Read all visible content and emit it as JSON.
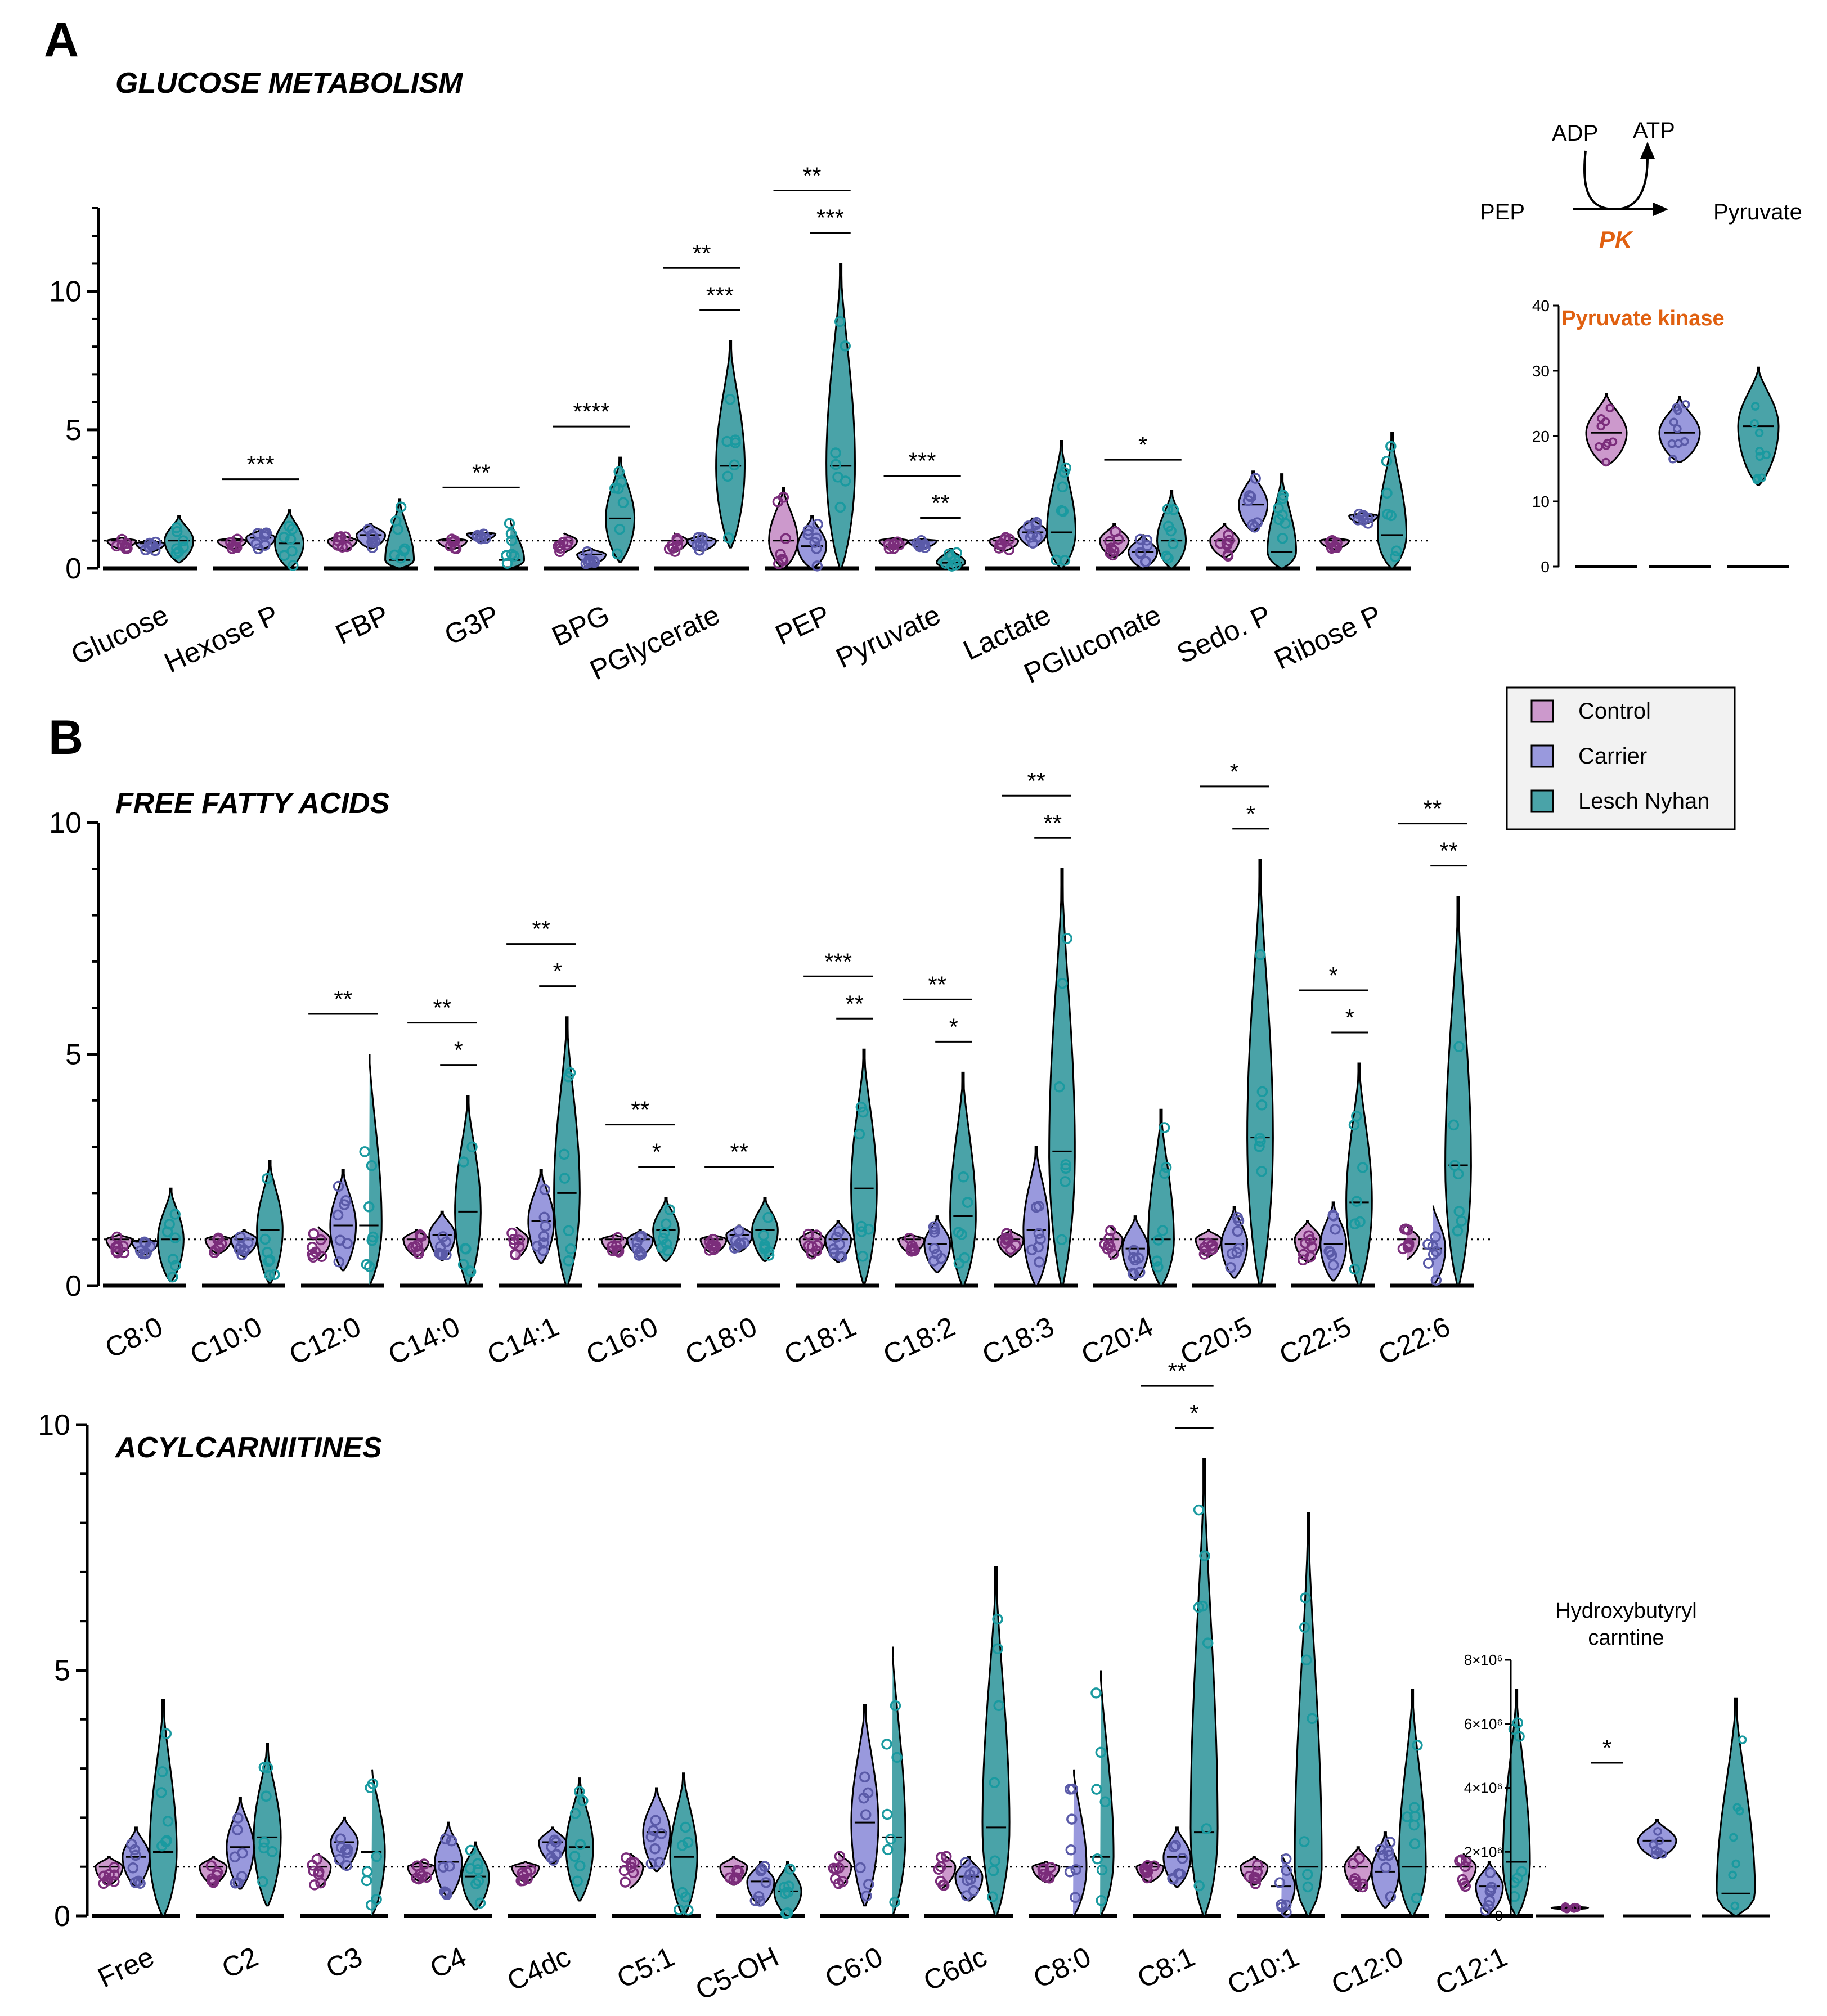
{
  "panel_letters": [
    "A",
    "B"
  ],
  "legend": {
    "items": [
      {
        "label": "Control",
        "color": "#cc99cc",
        "edge": "#6b2a6b"
      },
      {
        "label": "Carrier",
        "color": "#9999dd",
        "edge": "#444499"
      },
      {
        "label": "Lesch Nyhan",
        "color": "#4aa3a8",
        "edge": "#1a8a90"
      }
    ]
  },
  "colors": {
    "control_point": "#7b2d7b",
    "carrier_point": "#5a5aa8",
    "ln_point": "#1a9aa0",
    "annotation": "#e06010"
  },
  "pathway": {
    "substrate": "PEP",
    "product": "Pyruvate",
    "cofactor_in": "ADP",
    "cofactor_out": "ATP",
    "enzyme": "PK"
  },
  "chart_data": [
    {
      "type": "violin",
      "title": "GLUCOSE METABOLISM",
      "ylim": [
        0,
        13
      ],
      "yticks": [
        0,
        5,
        10
      ],
      "reference_line": 1,
      "categories": [
        "Glucose",
        "Hexose P",
        "FBP",
        "G3P",
        "BPG",
        "PGlycerate",
        "PEP",
        "Pyruvate",
        "Lactate",
        "PGluconate",
        "Sedo. P",
        "Ribose P"
      ],
      "series": [
        {
          "name": "Control",
          "medians": [
            1,
            1,
            1,
            1,
            1,
            1,
            1,
            1,
            1,
            1,
            1,
            1
          ],
          "maxes": [
            1.1,
            1.1,
            1.2,
            1.1,
            1.3,
            1.3,
            2.9,
            1.1,
            1.2,
            1.6,
            1.6,
            1.1
          ]
        },
        {
          "name": "Carrier",
          "medians": [
            0.9,
            1.1,
            1.2,
            1.25,
            0.5,
            1.0,
            0.8,
            1.0,
            1.3,
            0.6,
            2.3,
            1.9
          ],
          "maxes": [
            1.0,
            1.4,
            1.6,
            1.3,
            0.7,
            1.2,
            1.9,
            1.05,
            1.8,
            1.2,
            3.5,
            2.0
          ]
        },
        {
          "name": "Lesch Nyhan",
          "medians": [
            1.0,
            0.9,
            0.3,
            0.3,
            1.8,
            3.7,
            3.7,
            0.2,
            1.3,
            1.0,
            0.6,
            1.2
          ],
          "maxes": [
            1.9,
            2.1,
            2.5,
            1.8,
            4.0,
            8.2,
            11.0,
            0.7,
            4.6,
            2.8,
            3.4,
            4.9
          ]
        }
      ],
      "significance": [
        {
          "category": "Hexose P",
          "comparisons": [
            "***"
          ]
        },
        {
          "category": "G3P",
          "comparisons": [
            "**"
          ]
        },
        {
          "category": "BPG",
          "comparisons": [
            "****"
          ]
        },
        {
          "category": "PGlycerate",
          "comparisons": [
            "**",
            "***"
          ]
        },
        {
          "category": "PEP",
          "comparisons": [
            "**",
            "***"
          ]
        },
        {
          "category": "Pyruvate",
          "comparisons": [
            "***",
            "**"
          ]
        },
        {
          "category": "PGluconate",
          "comparisons": [
            "*"
          ]
        }
      ]
    },
    {
      "type": "violin",
      "title": "Pyruvate kinase",
      "ylim": [
        0,
        40
      ],
      "yticks": [
        0,
        10,
        20,
        30,
        40
      ],
      "categories": [
        "Control",
        "Carrier",
        "Lesch Nyhan"
      ],
      "medians": [
        20.5,
        20.5,
        21.5
      ],
      "maxes": [
        26.5,
        26,
        30.5
      ],
      "mins": [
        15.5,
        16,
        12.5
      ]
    },
    {
      "type": "violin",
      "title": "FREE FATTY ACIDS",
      "ylim": [
        0,
        10
      ],
      "yticks": [
        0,
        5,
        10
      ],
      "reference_line": 1,
      "categories": [
        "C8:0",
        "C10:0",
        "C12:0",
        "C14:0",
        "C14:1",
        "C16:0",
        "C18:0",
        "C18:1",
        "C18:2",
        "C18:3",
        "C20:4",
        "C20:5",
        "C22:5",
        "C22:6"
      ],
      "series": [
        {
          "name": "Control",
          "medians": [
            1,
            1,
            1,
            1,
            1,
            1,
            1,
            1,
            1,
            1,
            1,
            1,
            1,
            1
          ],
          "maxes": [
            1.1,
            1.1,
            1.3,
            1.2,
            1.3,
            1.1,
            1.1,
            1.2,
            1.1,
            1.2,
            1.3,
            1.2,
            1.4,
            1.3
          ]
        },
        {
          "name": "Carrier",
          "medians": [
            0.95,
            1.0,
            1.3,
            1.1,
            1.4,
            1.0,
            1.1,
            1.0,
            0.9,
            1.2,
            0.8,
            0.9,
            0.9,
            0.8
          ],
          "maxes": [
            1.0,
            1.2,
            2.5,
            1.6,
            2.5,
            1.2,
            1.3,
            1.4,
            1.5,
            3.0,
            1.5,
            1.7,
            1.8,
            1.8
          ]
        },
        {
          "name": "Lesch Nyhan",
          "medians": [
            1.0,
            1.2,
            1.3,
            1.6,
            2.0,
            1.2,
            1.2,
            2.1,
            1.5,
            2.9,
            1.0,
            3.2,
            1.8,
            2.6
          ],
          "maxes": [
            2.1,
            2.7,
            5.2,
            4.1,
            5.8,
            1.9,
            1.9,
            5.1,
            4.6,
            9.0,
            3.8,
            9.2,
            4.8,
            8.4
          ]
        }
      ],
      "significance": [
        {
          "category": "C12:0",
          "comparisons": [
            "**"
          ]
        },
        {
          "category": "C14:0",
          "comparisons": [
            "**",
            "*"
          ]
        },
        {
          "category": "C14:1",
          "comparisons": [
            "**",
            "*"
          ]
        },
        {
          "category": "C16:0",
          "comparisons": [
            "**",
            "*"
          ]
        },
        {
          "category": "C18:0",
          "comparisons": [
            "**"
          ]
        },
        {
          "category": "C18:1",
          "comparisons": [
            "***",
            "**"
          ]
        },
        {
          "category": "C18:2",
          "comparisons": [
            "**",
            "*"
          ]
        },
        {
          "category": "C18:3",
          "comparisons": [
            "**",
            "**"
          ]
        },
        {
          "category": "C20:5",
          "comparisons": [
            "*",
            "*"
          ]
        },
        {
          "category": "C22:5",
          "comparisons": [
            "*",
            "*"
          ]
        },
        {
          "category": "C22:6",
          "comparisons": [
            "**",
            "**"
          ]
        }
      ]
    },
    {
      "type": "violin",
      "title": "ACYLCARNIITINES",
      "ylim": [
        0,
        10
      ],
      "yticks": [
        0,
        5,
        10
      ],
      "reference_line": 1,
      "categories": [
        "Free",
        "C2",
        "C3",
        "C4",
        "C4dc",
        "C5:1",
        "C5-OH",
        "C6:0",
        "C6dc",
        "C8:0",
        "C8:1",
        "C10:1",
        "C12:0",
        "C12:1"
      ],
      "series": [
        {
          "name": "Control",
          "medians": [
            1,
            1,
            1,
            1,
            1,
            1,
            1,
            1,
            1,
            1,
            1,
            1,
            1,
            1
          ],
          "maxes": [
            1.2,
            1.2,
            1.3,
            1.1,
            1.1,
            1.3,
            1.2,
            1.3,
            1.3,
            1.1,
            1.1,
            1.2,
            1.4,
            1.3
          ]
        },
        {
          "name": "Carrier",
          "medians": [
            1.2,
            1.4,
            1.5,
            1.1,
            1.5,
            1.7,
            0.7,
            1.9,
            0.8,
            1.0,
            1.2,
            0.6,
            0.9,
            0.6
          ],
          "maxes": [
            1.8,
            2.4,
            2.0,
            1.9,
            1.8,
            2.6,
            1.1,
            4.3,
            1.2,
            3.1,
            1.8,
            1.3,
            1.7,
            1.1
          ]
        },
        {
          "name": "Lesch Nyhan",
          "medians": [
            1.3,
            1.6,
            1.3,
            0.8,
            1.4,
            1.2,
            0.5,
            1.6,
            1.8,
            1.2,
            1.7,
            1.0,
            1.0,
            1.1
          ],
          "maxes": [
            4.4,
            3.5,
            3.1,
            1.5,
            2.8,
            2.9,
            1.1,
            5.7,
            7.1,
            5.2,
            9.3,
            8.2,
            4.6,
            4.6
          ]
        }
      ],
      "significance": [
        {
          "category": "C8:1",
          "comparisons": [
            "**",
            "*"
          ]
        }
      ]
    },
    {
      "type": "violin",
      "title": "Hydroxybutyryl carntine",
      "title_lines": [
        "Hydroxybutyryl",
        "carntine"
      ],
      "ylim": [
        0,
        8000000
      ],
      "yticks": [
        0,
        2000000,
        4000000,
        6000000,
        8000000
      ],
      "ytick_labels": [
        "0",
        "2×10⁶",
        "4×10⁶",
        "6×10⁶",
        "8×10⁶"
      ],
      "categories": [
        "Control",
        "Carrier",
        "Lesch Nyhan"
      ],
      "medians": [
        250000,
        2350000,
        700000
      ],
      "maxes": [
        300000,
        3000000,
        6800000
      ],
      "mins": [
        200000,
        1800000,
        0
      ],
      "significance": [
        {
          "between": [
            "Carrier",
            "Lesch Nyhan"
          ],
          "label": "*"
        }
      ]
    }
  ]
}
